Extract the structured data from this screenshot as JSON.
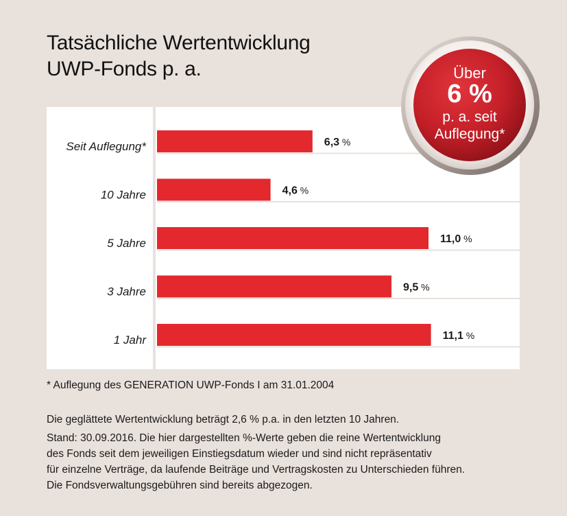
{
  "title_lines": [
    "Tatsächliche Wertentwicklung",
    "UWP-Fonds p. a."
  ],
  "badge": {
    "line1": "Über",
    "line2": "6 %",
    "line3": "p. a. seit",
    "line4": "Auflegung*",
    "color": "#c8202a"
  },
  "chart_data": {
    "type": "bar",
    "orientation": "horizontal",
    "title": "Tatsächliche Wertentwicklung UWP-Fonds p. a.",
    "categories": [
      "Seit Auflegung*",
      "10 Jahre",
      "5 Jahre",
      "3 Jahre",
      "1 Jahr"
    ],
    "values": [
      6.3,
      4.6,
      11.0,
      9.5,
      11.1
    ],
    "value_labels": [
      "6,3",
      "4,6",
      "11,0",
      "9,5",
      "11,1"
    ],
    "unit": "%",
    "bar_color": "#e3292e",
    "xlabel": "",
    "ylabel": "",
    "grid": false
  },
  "footnote": "* Auflegung des GENERATION UWP-Fonds I am 31.01.2004",
  "notes": [
    "Die geglättete Wertentwicklung beträgt 2,6 % p.a. in den letzten 10 Jahren.",
    "Stand: 30.09.2016. Die hier dargestellten %-Werte geben die reine Wertentwicklung",
    "des Fonds seit dem jeweiligen Einstiegsdatum wieder und sind nicht repräsentativ",
    "für einzelne Verträge, da laufende Beiträge und Vertragskosten zu Unterschieden führen.",
    "Die Fondsverwaltungsgebühren sind bereits abgezogen."
  ]
}
